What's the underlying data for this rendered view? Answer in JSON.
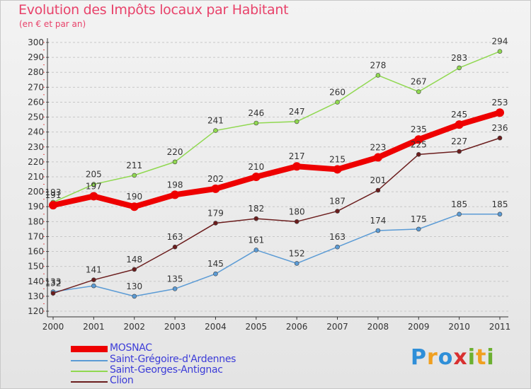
{
  "header": {
    "title": "Evolution des Impôts locaux par Habitant",
    "subtitle": "(en € et par an)"
  },
  "logo": {
    "text": "Proxiti"
  },
  "chart_data": {
    "type": "line",
    "title": "Evolution des Impôts locaux par Habitant",
    "subtitle": "(en € et par an)",
    "xlabel": "",
    "ylabel": "",
    "ylim": [
      120,
      300
    ],
    "ytick_step": 10,
    "grid": "horizontal-dashed",
    "legend_position": "bottom-left",
    "categories": [
      "2000",
      "2001",
      "2002",
      "2003",
      "2004",
      "2005",
      "2006",
      "2007",
      "2008",
      "2009",
      "2010",
      "2011"
    ],
    "series": [
      {
        "name": "Saint-Grégoire-d'Ardennes",
        "color": "#5b9bd5",
        "values": [
          133,
          137,
          130,
          135,
          145,
          161,
          152,
          163,
          174,
          175,
          185,
          185
        ],
        "labels": [
          "133",
          "",
          "130",
          "135",
          "145",
          "161",
          "152",
          "163",
          "174",
          "175",
          "185",
          "185"
        ]
      },
      {
        "name": "Clion",
        "color": "#6b1d1d",
        "values": [
          132,
          141,
          148,
          163,
          179,
          182,
          180,
          187,
          201,
          225,
          227,
          236
        ],
        "labels": [
          "132",
          "141",
          "148",
          "163",
          "179",
          "182",
          "180",
          "187",
          "201",
          "225",
          "227",
          "236"
        ]
      },
      {
        "name": "Saint-Georges-Antignac",
        "color": "#90d850",
        "values": [
          193,
          205,
          211,
          220,
          241,
          246,
          247,
          260,
          278,
          267,
          283,
          294
        ],
        "labels": [
          "193",
          "205",
          "211",
          "220",
          "241",
          "246",
          "247",
          "260",
          "278",
          "267",
          "283",
          "294"
        ]
      },
      {
        "name": "MOSNAC",
        "color": "#ee0000",
        "values": [
          191,
          197,
          190,
          198,
          202,
          210,
          217,
          215,
          223,
          235,
          245,
          253
        ],
        "labels": [
          "191",
          "197",
          "190",
          "198",
          "202",
          "210",
          "217",
          "215",
          "223",
          "235",
          "245",
          "253"
        ]
      }
    ],
    "legend": [
      {
        "name": "MOSNAC",
        "color": "#ee0000"
      },
      {
        "name": "Saint-Grégoire-d'Ardennes",
        "color": "#5b9bd5"
      },
      {
        "name": "Saint-Georges-Antignac",
        "color": "#90d850"
      },
      {
        "name": "Clion",
        "color": "#6b1d1d"
      }
    ]
  }
}
